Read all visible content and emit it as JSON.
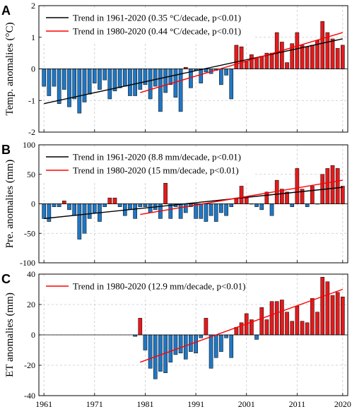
{
  "colors": {
    "negative": "#1f77c4",
    "positive": "#e31a1c",
    "trend_1961": "#000000",
    "trend_1980": "#ff0000"
  },
  "chart_data": [
    {
      "type": "bar",
      "panel_label": "A",
      "ylabel": "Temp. anomalies (°C)",
      "ylim": [
        -2,
        2
      ],
      "yticks": [
        -2,
        -1,
        0,
        1,
        2
      ],
      "xlim": [
        1960,
        2021
      ],
      "xticks": [
        1961,
        1971,
        1981,
        1991,
        2001,
        2011,
        2020
      ],
      "show_xtick_labels": false,
      "grid": true,
      "legend_position": "top-left",
      "x": [
        1961,
        1962,
        1963,
        1964,
        1965,
        1966,
        1967,
        1968,
        1969,
        1970,
        1971,
        1972,
        1973,
        1974,
        1975,
        1976,
        1977,
        1978,
        1979,
        1980,
        1981,
        1982,
        1983,
        1984,
        1985,
        1986,
        1987,
        1988,
        1989,
        1990,
        1991,
        1992,
        1993,
        1994,
        1995,
        1996,
        1997,
        1998,
        1999,
        2000,
        2001,
        2002,
        2003,
        2004,
        2005,
        2006,
        2007,
        2008,
        2009,
        2010,
        2011,
        2012,
        2013,
        2014,
        2015,
        2016,
        2017,
        2018,
        2019,
        2020
      ],
      "values": [
        -0.55,
        -0.85,
        -0.55,
        -1.1,
        -0.65,
        -1.2,
        -0.95,
        -1.4,
        -1.05,
        -0.8,
        -0.45,
        -0.65,
        -0.35,
        -0.95,
        -0.7,
        -0.6,
        -0.55,
        -0.85,
        -0.85,
        -0.65,
        -0.5,
        -0.95,
        -0.55,
        -1.35,
        -0.75,
        -0.5,
        -0.9,
        -1.35,
        0.05,
        -0.6,
        -0.05,
        -0.45,
        -0.1,
        -0.15,
        -0.05,
        -0.5,
        -0.2,
        -0.95,
        0.75,
        0.7,
        0.25,
        0.45,
        0.35,
        0.4,
        0.5,
        0.5,
        1.15,
        0.85,
        0.2,
        0.8,
        1.15,
        0.75,
        0.7,
        0.75,
        0.9,
        1.5,
        1.15,
        0.95,
        0.65,
        0.75
      ],
      "series": [
        {
          "name": "Trend in 1961-2020 (0.35 °C/decade, p<0.01)",
          "x": [
            1961,
            2020
          ],
          "y": [
            -1.1,
            0.95
          ]
        },
        {
          "name": "Trend in 1980-2020 (0.44 °C/decade, p<0.01)",
          "x": [
            1980,
            2020
          ],
          "y": [
            -0.75,
            1.15
          ]
        }
      ]
    },
    {
      "type": "bar",
      "panel_label": "B",
      "ylabel": "Pre. anomalies (mm)",
      "ylim": [
        -100,
        100
      ],
      "yticks": [
        -100,
        -50,
        0,
        50,
        100
      ],
      "xlim": [
        1960,
        2021
      ],
      "xticks": [
        1961,
        1971,
        1981,
        1991,
        2001,
        2011,
        2020
      ],
      "show_xtick_labels": false,
      "grid": true,
      "legend_position": "top-left",
      "x": [
        1961,
        1962,
        1963,
        1964,
        1965,
        1966,
        1967,
        1968,
        1969,
        1970,
        1971,
        1972,
        1973,
        1974,
        1975,
        1976,
        1977,
        1978,
        1979,
        1980,
        1981,
        1982,
        1983,
        1984,
        1985,
        1986,
        1987,
        1988,
        1989,
        1990,
        1991,
        1992,
        1993,
        1994,
        1995,
        1996,
        1997,
        1998,
        1999,
        2000,
        2001,
        2002,
        2003,
        2004,
        2005,
        2006,
        2007,
        2008,
        2009,
        2010,
        2011,
        2012,
        2013,
        2014,
        2015,
        2016,
        2017,
        2018,
        2019,
        2020
      ],
      "values": [
        -25,
        -30,
        -5,
        -5,
        5,
        -10,
        -20,
        -60,
        -50,
        -25,
        -15,
        -30,
        -5,
        10,
        10,
        -5,
        -20,
        -10,
        -25,
        -5,
        -5,
        -15,
        -10,
        -25,
        35,
        -25,
        -5,
        -25,
        -15,
        -5,
        -25,
        -25,
        -30,
        -20,
        -30,
        -15,
        -20,
        -5,
        10,
        30,
        10,
        0,
        -5,
        -10,
        20,
        -20,
        40,
        25,
        20,
        -5,
        60,
        25,
        -5,
        30,
        0,
        50,
        60,
        65,
        60,
        30
      ],
      "series": [
        {
          "name": "Trend in 1961-2020 (8.8 mm/decade, p<0.01)",
          "x": [
            1961,
            2020
          ],
          "y": [
            -25,
            28
          ]
        },
        {
          "name": "Trend in 1980-2020 (15 mm/decade, p<0.01)",
          "x": [
            1980,
            2020
          ],
          "y": [
            -18,
            40
          ]
        }
      ]
    },
    {
      "type": "bar",
      "panel_label": "C",
      "ylabel": "ET anomalies (mm)",
      "ylim": [
        -40,
        40
      ],
      "yticks": [
        -40,
        -20,
        0,
        20,
        40
      ],
      "xlim": [
        1960,
        2021
      ],
      "xticks": [
        1961,
        1971,
        1981,
        1991,
        2001,
        2011,
        2020
      ],
      "show_xtick_labels": true,
      "grid": true,
      "legend_position": "top-left",
      "x": [
        1979,
        1980,
        1981,
        1982,
        1983,
        1984,
        1985,
        1986,
        1987,
        1988,
        1989,
        1990,
        1991,
        1992,
        1993,
        1994,
        1995,
        1996,
        1997,
        1998,
        1999,
        2000,
        2001,
        2002,
        2003,
        2004,
        2005,
        2006,
        2007,
        2008,
        2009,
        2010,
        2011,
        2012,
        2013,
        2014,
        2015,
        2016,
        2017,
        2018,
        2019,
        2020
      ],
      "values": [
        -1,
        11,
        -10,
        -22,
        -29,
        -24,
        -25,
        -18,
        -13,
        -12,
        -16,
        -11,
        -12,
        -2,
        11,
        -22,
        -15,
        -11,
        -2,
        -15,
        5,
        8,
        14,
        10,
        -3,
        18,
        10,
        22,
        22,
        23,
        15,
        9,
        19,
        9,
        8,
        24,
        15,
        38,
        35,
        26,
        28,
        25
      ],
      "series": [
        {
          "name": "Trend in 1980-2020 (12.9 mm/decade, p<0.01)",
          "x": [
            1980,
            2020
          ],
          "y": [
            -18,
            30
          ]
        }
      ]
    }
  ]
}
